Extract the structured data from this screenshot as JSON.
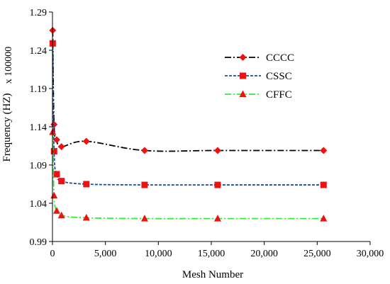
{
  "chart_data": {
    "type": "line",
    "title": "",
    "xlabel": "Mesh Number",
    "ylabel": "Frequency (HZ)",
    "y_multiplier_label": "x 100000",
    "xlim": [
      0,
      30000
    ],
    "ylim": [
      0.99,
      1.29
    ],
    "x_ticks": [
      0,
      5000,
      10000,
      15000,
      20000,
      25000,
      30000
    ],
    "x_tick_labels": [
      "0",
      "5,000",
      "10,000",
      "15,000",
      "20,000",
      "25,000",
      "30,000"
    ],
    "y_ticks": [
      0.99,
      1.04,
      1.09,
      1.14,
      1.19,
      1.24,
      1.29
    ],
    "y_tick_labels": [
      "0.99",
      "1.04",
      "1.09",
      "1.14",
      "1.19",
      "1.24",
      "1.29"
    ],
    "grid": false,
    "legend_position": "top-right",
    "series": [
      {
        "name": "CCCC",
        "color": "#000000",
        "dash": "dash-dot",
        "marker": "diamond",
        "x": [
          20,
          150,
          400,
          850,
          3200,
          8700,
          15600,
          25600
        ],
        "y": [
          1.266,
          1.143,
          1.123,
          1.114,
          1.121,
          1.109,
          1.109,
          1.109
        ]
      },
      {
        "name": "CSSC",
        "color": "#1f4e9c",
        "dash": "dashed",
        "marker": "square",
        "x": [
          20,
          150,
          400,
          850,
          3200,
          8700,
          15600,
          25600
        ],
        "y": [
          1.249,
          1.108,
          1.078,
          1.069,
          1.065,
          1.064,
          1.064,
          1.064
        ]
      },
      {
        "name": "CFFC",
        "color": "#33ee33",
        "dash": "dash-dot",
        "marker": "triangle",
        "x": [
          20,
          150,
          400,
          850,
          3200,
          8700,
          15600,
          25600
        ],
        "y": [
          1.133,
          1.05,
          1.03,
          1.024,
          1.021,
          1.02,
          1.02,
          1.02
        ]
      }
    ]
  },
  "marker_color": "#ee1111"
}
